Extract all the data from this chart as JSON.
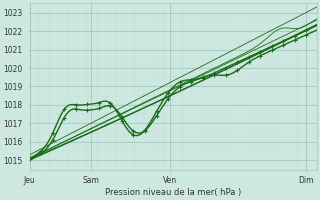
{
  "xlabel": "Pression niveau de la mer( hPa )",
  "ylim": [
    1014.5,
    1023.5
  ],
  "yticks": [
    1015,
    1016,
    1017,
    1018,
    1019,
    1020,
    1021,
    1022,
    1023
  ],
  "xtick_labels": [
    "Jeu",
    "Sam",
    "Ven",
    "Dim"
  ],
  "xtick_positions": [
    0.0,
    0.215,
    0.49,
    0.965
  ],
  "bg_color": "#cde8e0",
  "grid_color_major": "#a8c8be",
  "grid_color_minor": "#c0ddd6",
  "line_color": "#1a6b1a",
  "line_color_thin": "#2a7a2a",
  "xlim": [
    0.0,
    1.0
  ]
}
